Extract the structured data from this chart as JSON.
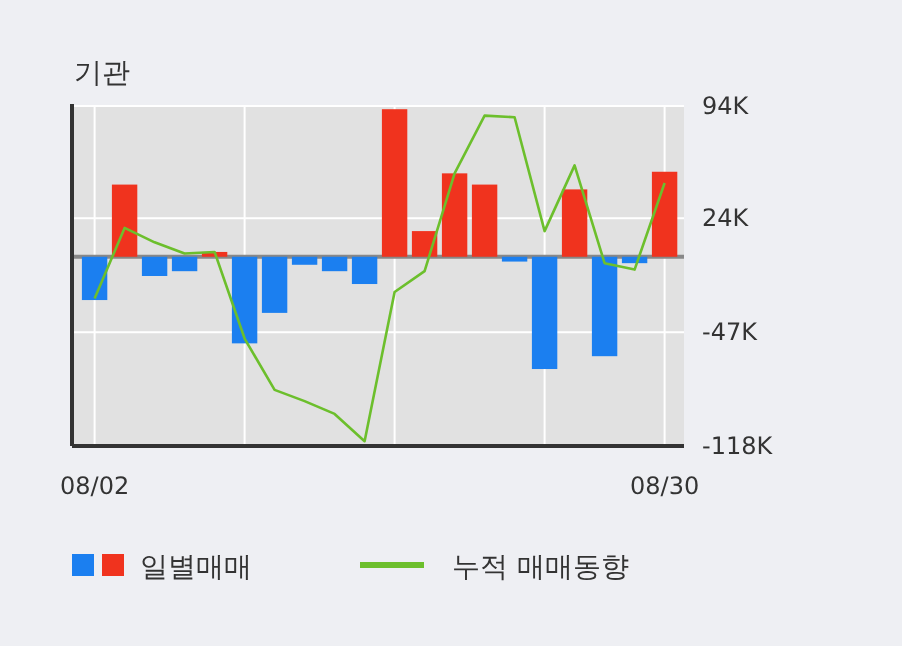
{
  "chart_data": {
    "type": "bar",
    "title": "기관",
    "categories": [
      "08/02",
      null,
      null,
      null,
      null,
      null,
      null,
      null,
      null,
      null,
      null,
      null,
      null,
      null,
      null,
      null,
      null,
      null,
      null,
      "08/30"
    ],
    "series": [
      {
        "name": "일별매매",
        "colors": [
          "#1b7ff0",
          "#f0331e",
          "#1b7ff0",
          "#1b7ff0",
          "#f0331e",
          "#1b7ff0",
          "#1b7ff0",
          "#1b7ff0",
          "#1b7ff0",
          "#1b7ff0",
          "#f0331e",
          "#f0331e",
          "#f0331e",
          "#f0331e",
          "#1b7ff0",
          "#1b7ff0",
          "#f0331e",
          "#1b7ff0",
          "#1b7ff0",
          "#f0331e"
        ],
        "values": [
          -27,
          45,
          -12,
          -9,
          3,
          -54,
          -35,
          -5,
          -9,
          -17,
          92,
          16,
          52,
          45,
          -3,
          -70,
          42,
          -62,
          -4,
          53
        ]
      },
      {
        "name": "누적 매매동향",
        "type": "line",
        "color": "#6cbf2c",
        "values": [
          -26,
          18,
          9,
          2,
          3,
          -51,
          -83,
          -90,
          -98,
          -115,
          -22,
          -9,
          52,
          88,
          87,
          16,
          57,
          -4,
          -8,
          46
        ]
      }
    ],
    "ylim": [
      -118,
      94
    ],
    "yticks": [
      {
        "value": 94,
        "label": "94K"
      },
      {
        "value": 24,
        "label": "24K"
      },
      {
        "value": -47,
        "label": "-47K"
      },
      {
        "value": -118,
        "label": "-118K"
      }
    ],
    "grid": true,
    "legend": "bottom"
  }
}
